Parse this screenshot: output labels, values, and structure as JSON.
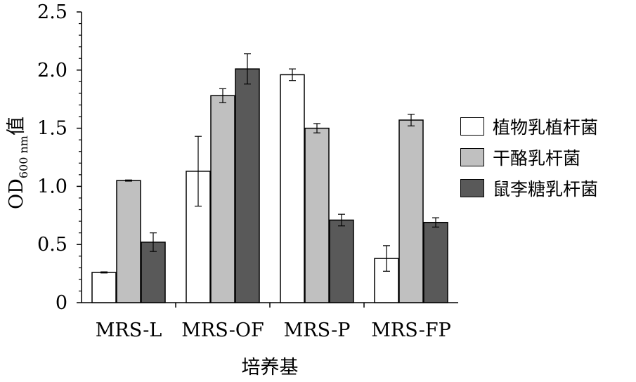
{
  "chart_data": {
    "type": "bar",
    "categories": [
      "MRS-L",
      "MRS-OF",
      "MRS-P",
      "MRS-FP"
    ],
    "series": [
      {
        "name": "植物乳植杆菌",
        "values": [
          0.26,
          1.13,
          1.96,
          0.38
        ],
        "errors": [
          0.005,
          0.3,
          0.05,
          0.11
        ],
        "color": "#ffffff"
      },
      {
        "name": "干酪乳杆菌",
        "values": [
          1.05,
          1.78,
          1.5,
          1.57
        ],
        "errors": [
          0.005,
          0.06,
          0.04,
          0.05
        ],
        "color": "#c0c0c0"
      },
      {
        "name": "鼠李糖乳杆菌",
        "values": [
          0.52,
          2.01,
          0.71,
          0.69
        ],
        "errors": [
          0.08,
          0.13,
          0.05,
          0.04
        ],
        "color": "#595959"
      }
    ],
    "ylabel_main": "OD",
    "ylabel_sub": "600 nm",
    "ylabel_suffix": "值",
    "xlabel": "培养基",
    "ylim": [
      0,
      2.5
    ],
    "yticks": [
      "0",
      "0.5",
      "1.0",
      "1.5",
      "2.0",
      "2.5"
    ],
    "grid": false,
    "legend": "right"
  }
}
